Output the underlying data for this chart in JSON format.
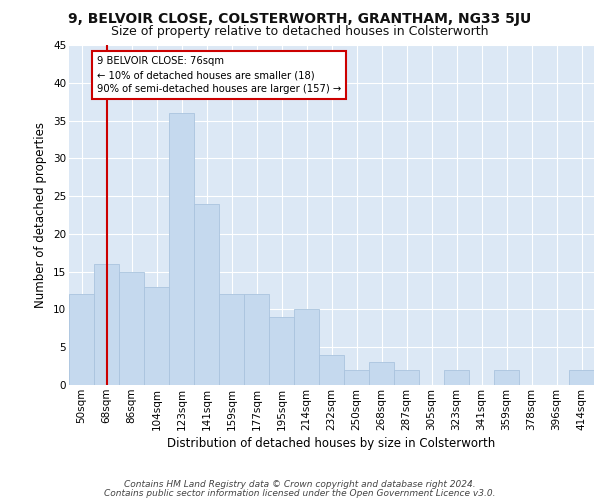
{
  "title1": "9, BELVOIR CLOSE, COLSTERWORTH, GRANTHAM, NG33 5JU",
  "title2": "Size of property relative to detached houses in Colsterworth",
  "xlabel": "Distribution of detached houses by size in Colsterworth",
  "ylabel": "Number of detached properties",
  "footer1": "Contains HM Land Registry data © Crown copyright and database right 2024.",
  "footer2": "Contains public sector information licensed under the Open Government Licence v3.0.",
  "categories": [
    "50sqm",
    "68sqm",
    "86sqm",
    "104sqm",
    "123sqm",
    "141sqm",
    "159sqm",
    "177sqm",
    "195sqm",
    "214sqm",
    "232sqm",
    "250sqm",
    "268sqm",
    "287sqm",
    "305sqm",
    "323sqm",
    "341sqm",
    "359sqm",
    "378sqm",
    "396sqm",
    "414sqm"
  ],
  "values": [
    12,
    16,
    15,
    13,
    36,
    24,
    12,
    12,
    9,
    10,
    4,
    2,
    3,
    2,
    0,
    2,
    0,
    2,
    0,
    0,
    2
  ],
  "bar_color": "#c5d9ee",
  "bar_edge_color": "#aac4de",
  "background_color": "#dce8f5",
  "annotation_text": "9 BELVOIR CLOSE: 76sqm\n← 10% of detached houses are smaller (18)\n90% of semi-detached houses are larger (157) →",
  "annotation_box_color": "#ffffff",
  "annotation_box_edge": "#cc0000",
  "vline_color": "#cc0000",
  "vline_x": 1.0,
  "ylim": [
    0,
    45
  ],
  "yticks": [
    0,
    5,
    10,
    15,
    20,
    25,
    30,
    35,
    40,
    45
  ],
  "grid_color": "#ffffff",
  "title_fontsize": 10,
  "subtitle_fontsize": 9,
  "axis_label_fontsize": 8.5,
  "tick_fontsize": 7.5,
  "footer_fontsize": 6.5
}
